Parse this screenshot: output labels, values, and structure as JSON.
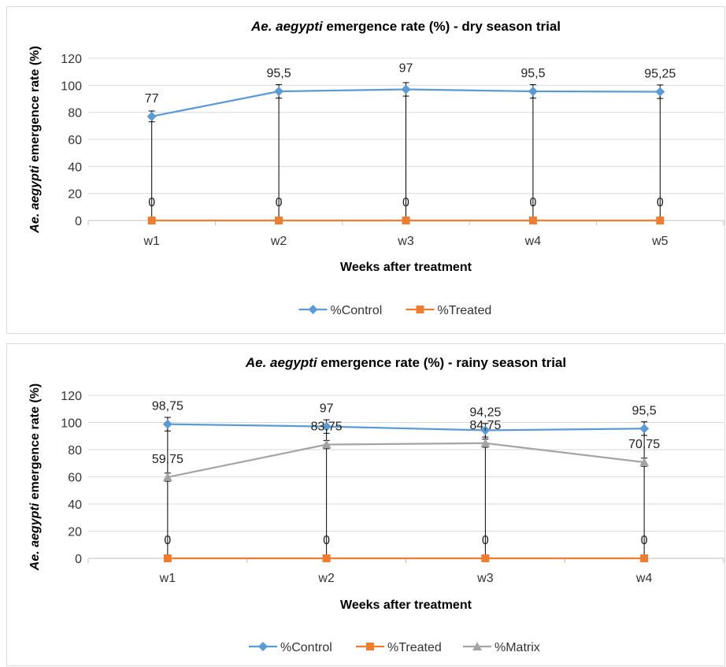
{
  "chart_data": [
    {
      "type": "line",
      "title_italic": "Ae. aegypti",
      "title_rest": " emergence rate (%) - dry season trial",
      "ylabel_italic": "Ae. aegypti",
      "ylabel_rest": " emergence rate (%)",
      "xlabel": "Weeks after treatment",
      "categories": [
        "w1",
        "w2",
        "w3",
        "w4",
        "w5"
      ],
      "ylim": [
        0,
        120
      ],
      "yticks": [
        0,
        20,
        40,
        60,
        80,
        100,
        120
      ],
      "grid": true,
      "legend_position": "bottom",
      "series": [
        {
          "name": "%Control",
          "values": [
            77,
            95.5,
            97,
            95.5,
            95.25
          ],
          "labels": [
            "77",
            "95,5",
            "97",
            "95,5",
            "95,25"
          ],
          "error": [
            4,
            5,
            5,
            5,
            5
          ],
          "color": "#5B9BD5",
          "marker": "diamond"
        },
        {
          "name": "%Treated",
          "values": [
            0,
            0,
            0,
            0,
            0
          ],
          "labels": [
            "0",
            "0",
            "0",
            "0",
            "0"
          ],
          "error": [
            0,
            0,
            0,
            0,
            0
          ],
          "color": "#ED7D31",
          "marker": "square"
        }
      ]
    },
    {
      "type": "line",
      "title_italic": "Ae. aegypti",
      "title_rest": " emergence rate (%) - rainy season trial",
      "ylabel_italic": "Ae. aegypti",
      "ylabel_rest": " emergence rate (%)",
      "xlabel": "Weeks after treatment",
      "categories": [
        "w1",
        "w2",
        "w3",
        "w4"
      ],
      "ylim": [
        0,
        120
      ],
      "yticks": [
        0,
        20,
        40,
        60,
        80,
        100,
        120
      ],
      "grid": true,
      "legend_position": "bottom",
      "series": [
        {
          "name": "%Control",
          "values": [
            98.75,
            97,
            94.25,
            95.5
          ],
          "labels": [
            "98,75",
            "97",
            "94,25",
            "95,5"
          ],
          "error": [
            5,
            5,
            5,
            5
          ],
          "color": "#5B9BD5",
          "marker": "diamond"
        },
        {
          "name": "%Treated",
          "values": [
            0,
            0,
            0,
            0
          ],
          "labels": [
            "0",
            "0",
            "0",
            "0"
          ],
          "error": [
            0,
            0,
            0,
            0
          ],
          "color": "#ED7D31",
          "marker": "square"
        },
        {
          "name": "%Matrix",
          "values": [
            59.75,
            83.75,
            84.75,
            70.75
          ],
          "labels": [
            "59,75",
            "83,75",
            "84,75",
            "70,75"
          ],
          "error": [
            3,
            3,
            3,
            3
          ],
          "color": "#A5A5A5",
          "marker": "triangle"
        }
      ]
    }
  ]
}
